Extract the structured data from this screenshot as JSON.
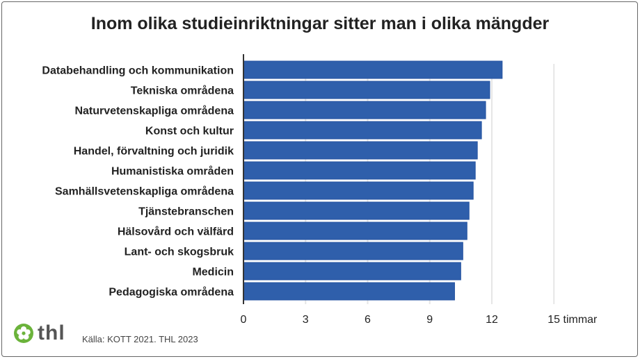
{
  "chart_data": {
    "type": "bar",
    "orientation": "horizontal",
    "title": "Inom olika studieinriktningar sitter man i olika mängder",
    "categories": [
      "Databehandling och kommunikation",
      "Tekniska områdena",
      "Naturvetenskapliga områdena",
      "Konst och kultur",
      "Handel, förvaltning och juridik",
      "Humanistiska områden",
      "Samhällsvetenskapliga områdena",
      "Tjänstebranschen",
      "Hälsovård och välfärd",
      "Lant- och skogsbruk",
      "Medicin",
      "Pedagogiska områdena"
    ],
    "values": [
      12.5,
      11.9,
      11.7,
      11.5,
      11.3,
      11.2,
      11.1,
      10.9,
      10.8,
      10.6,
      10.5,
      10.2
    ],
    "xlim": [
      0,
      15
    ],
    "ticks": [
      0,
      3,
      6,
      9,
      12,
      15
    ],
    "tick_labels": [
      "0",
      "3",
      "6",
      "9",
      "12",
      "15 timmar"
    ],
    "grid": true,
    "bar_color": "#2f5fab"
  },
  "footer": {
    "logo_text": "thl",
    "source": "Källa: KOTT 2021. THL 2023"
  }
}
